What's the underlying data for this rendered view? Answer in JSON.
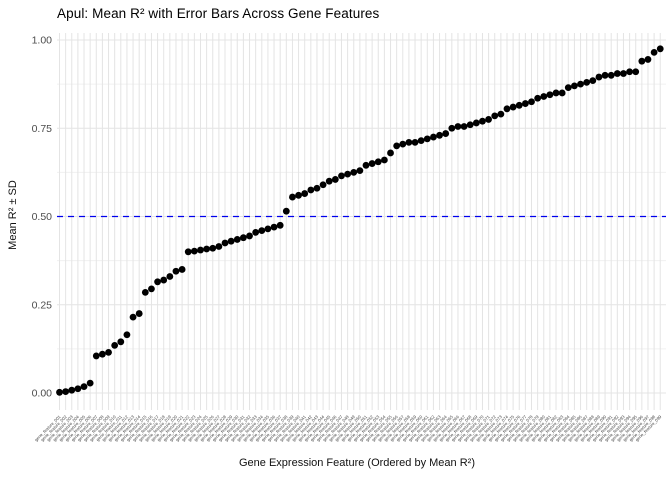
{
  "chart_data": {
    "type": "scatter",
    "title": "Apul: Mean R² with Error Bars Across Gene Features",
    "xlabel": "Gene Expression Feature (Ordered by Mean R²)",
    "ylabel": "Mean R² ± SD",
    "ylim": [
      -0.05,
      1.02
    ],
    "yticks": [
      0.0,
      0.25,
      0.5,
      0.75,
      1.0
    ],
    "ytick_labels": [
      "0.00",
      "0.25",
      "0.50",
      "0.75",
      "1.00"
    ],
    "minor_yticks": [
      0.125,
      0.375,
      0.625,
      0.875
    ],
    "reference_line": {
      "y": 0.5,
      "color": "#0000EE",
      "style": "dashed"
    },
    "point_color": "#000000",
    "major_grid_color": "#E4E4E4",
    "minor_grid_color": "#F0F0F0",
    "axis_text_color": "#4D4D4D",
    "legend_position": "none",
    "categories": [
      "gene_feature_001",
      "gene_feature_002",
      "gene_feature_003",
      "gene_feature_004",
      "gene_feature_005",
      "gene_feature_006",
      "gene_feature_007",
      "gene_feature_008",
      "gene_feature_009",
      "gene_feature_010",
      "gene_feature_011",
      "gene_feature_012",
      "gene_feature_013",
      "gene_feature_014",
      "gene_feature_015",
      "gene_feature_016",
      "gene_feature_017",
      "gene_feature_018",
      "gene_feature_019",
      "gene_feature_020",
      "gene_feature_021",
      "gene_feature_022",
      "gene_feature_023",
      "gene_feature_024",
      "gene_feature_025",
      "gene_feature_026",
      "gene_feature_027",
      "gene_feature_028",
      "gene_feature_029",
      "gene_feature_030",
      "gene_feature_031",
      "gene_feature_032",
      "gene_feature_033",
      "gene_feature_034",
      "gene_feature_035",
      "gene_feature_036",
      "gene_feature_037",
      "gene_feature_038",
      "gene_feature_039",
      "gene_feature_040",
      "gene_feature_041",
      "gene_feature_042",
      "gene_feature_043",
      "gene_feature_044",
      "gene_feature_045",
      "gene_feature_046",
      "gene_feature_047",
      "gene_feature_048",
      "gene_feature_049",
      "gene_feature_050",
      "gene_feature_051",
      "gene_feature_052",
      "gene_feature_053",
      "gene_feature_054",
      "gene_feature_055",
      "gene_feature_056",
      "gene_feature_057",
      "gene_feature_058",
      "gene_feature_059",
      "gene_feature_060",
      "gene_feature_061",
      "gene_feature_062",
      "gene_feature_063",
      "gene_feature_064",
      "gene_feature_065",
      "gene_feature_066",
      "gene_feature_067",
      "gene_feature_068",
      "gene_feature_069",
      "gene_feature_070",
      "gene_feature_071",
      "gene_feature_072",
      "gene_feature_073",
      "gene_feature_074",
      "gene_feature_075",
      "gene_feature_076",
      "gene_feature_077",
      "gene_feature_078",
      "gene_feature_079",
      "gene_feature_080",
      "gene_feature_081",
      "gene_feature_082",
      "gene_feature_083",
      "gene_feature_084",
      "gene_feature_085",
      "gene_feature_086",
      "gene_feature_087",
      "gene_feature_088",
      "gene_feature_089",
      "gene_feature_090",
      "gene_feature_091",
      "gene_feature_092",
      "gene_feature_093",
      "gene_feature_094",
      "gene_feature_095",
      "gene_feature_096",
      "gene_feature_097",
      "gene_feature_098",
      "gene_feature_099"
    ],
    "values": [
      0.002,
      0.004,
      0.008,
      0.012,
      0.018,
      0.028,
      0.105,
      0.11,
      0.115,
      0.135,
      0.145,
      0.165,
      0.215,
      0.225,
      0.285,
      0.295,
      0.315,
      0.32,
      0.33,
      0.345,
      0.35,
      0.4,
      0.402,
      0.405,
      0.408,
      0.41,
      0.415,
      0.425,
      0.43,
      0.435,
      0.44,
      0.445,
      0.455,
      0.46,
      0.465,
      0.47,
      0.475,
      0.515,
      0.555,
      0.56,
      0.565,
      0.575,
      0.58,
      0.59,
      0.6,
      0.605,
      0.615,
      0.62,
      0.625,
      0.63,
      0.645,
      0.65,
      0.655,
      0.66,
      0.68,
      0.7,
      0.705,
      0.71,
      0.71,
      0.715,
      0.72,
      0.725,
      0.73,
      0.735,
      0.75,
      0.755,
      0.755,
      0.76,
      0.765,
      0.77,
      0.775,
      0.785,
      0.79,
      0.805,
      0.81,
      0.815,
      0.82,
      0.825,
      0.835,
      0.84,
      0.845,
      0.85,
      0.85,
      0.865,
      0.87,
      0.875,
      0.88,
      0.885,
      0.895,
      0.9,
      0.9,
      0.905,
      0.905,
      0.91,
      0.91,
      0.94,
      0.945,
      0.965,
      0.975
    ]
  }
}
